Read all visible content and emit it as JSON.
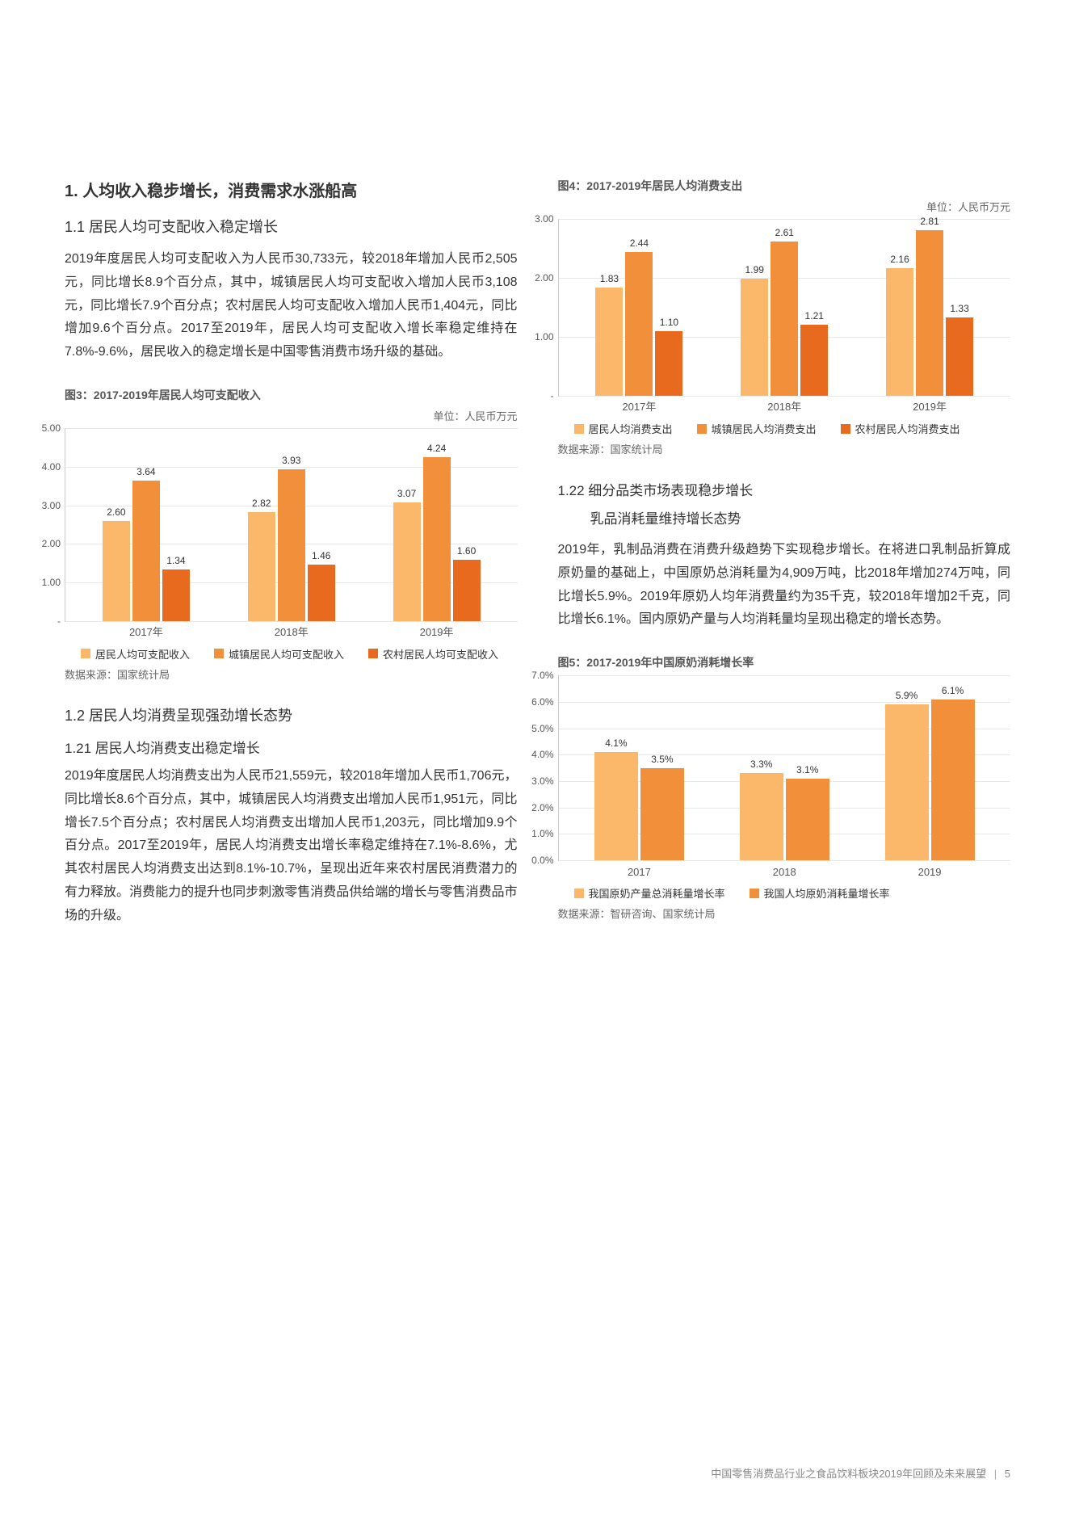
{
  "left": {
    "sec1_title": "1. 人均收入稳步增长，消费需求水涨船高",
    "sec11_title": "1.1 居民人均可支配收入稳定增长",
    "sec11_body": "2019年度居民人均可支配收入为人民币30,733元，较2018年增加人民币2,505元，同比增长8.9个百分点，其中，城镇居民人均可支配收入增加人民币3,108元，同比增长7.9个百分点；农村居民人均可支配收入增加人民币1,404元，同比增加9.6个百分点。2017至2019年，居民人均可支配收入增长率稳定维持在7.8%-9.6%，居民收入的稳定增长是中国零售消费市场升级的基础。",
    "fig3_title": "图3：2017-2019年居民人均可支配收入",
    "fig3_unit": "单位：人民币万元",
    "fig3_source": "数据来源：国家统计局",
    "sec12_title": "1.2 居民人均消费呈现强劲增长态势",
    "sec121_title": "1.21 居民人均消费支出稳定增长",
    "sec121_body": "2019年度居民人均消费支出为人民币21,559元，较2018年增加人民币1,706元，同比增长8.6个百分点，其中，城镇居民人均消费支出增加人民币1,951元，同比增长7.5个百分点；农村居民人均消费支出增加人民币1,203元，同比增加9.9个百分点。2017至2019年，居民人均消费支出增长率稳定维持在7.1%-8.6%，尤其农村居民人均消费支出达到8.1%-10.7%，呈现出近年来农村居民消费潜力的有力释放。消费能力的提升也同步刺激零售消费品供给端的增长与零售消费品市场的升级。"
  },
  "right": {
    "fig4_title": "图4：2017-2019年居民人均消费支出",
    "fig4_unit": "单位：人民币万元",
    "fig4_source": "数据来源：国家统计局",
    "sec122_title_a": "1.22 细分品类市场表现稳步增长",
    "sec122_title_b": "乳品消耗量维持增长态势",
    "sec122_body": "2019年，乳制品消费在消费升级趋势下实现稳步增长。在将进口乳制品折算成原奶量的基础上，中国原奶总消耗量为4,909万吨，比2018年增加274万吨，同比增长5.9%。2019年原奶人均年消费量约为35千克，较2018年增加2千克，同比增长6.1%。国内原奶产量与人均消耗量均呈现出稳定的增长态势。",
    "fig5_title": "图5：2017-2019年中国原奶消耗增长率",
    "fig5_source": "数据来源：智研咨询、国家统计局"
  },
  "colors": {
    "c1": "#fbb76a",
    "c2": "#f28f3b",
    "c3": "#e86a1e",
    "grid": "#e8e8e8"
  },
  "chart3": {
    "ymax": 5.0,
    "ystep": 1.0,
    "categories": [
      "2017年",
      "2018年",
      "2019年"
    ],
    "series": [
      {
        "name": "居民人均可支配收入",
        "colorKey": "c1",
        "values": [
          2.6,
          2.82,
          3.07
        ]
      },
      {
        "name": "城镇居民人均可支配收入",
        "colorKey": "c2",
        "values": [
          3.64,
          3.93,
          4.24
        ]
      },
      {
        "name": "农村居民人均可支配收入",
        "colorKey": "c3",
        "values": [
          1.34,
          1.46,
          1.6
        ]
      }
    ]
  },
  "chart4": {
    "ymax": 3.0,
    "ystep": 1.0,
    "categories": [
      "2017年",
      "2018年",
      "2019年"
    ],
    "series": [
      {
        "name": "居民人均消费支出",
        "colorKey": "c1",
        "values": [
          1.83,
          1.99,
          2.16
        ]
      },
      {
        "name": "城镇居民人均消费支出",
        "colorKey": "c2",
        "values": [
          2.44,
          2.61,
          2.81
        ]
      },
      {
        "name": "农村居民人均消费支出",
        "colorKey": "c3",
        "values": [
          1.1,
          1.21,
          1.33
        ]
      }
    ]
  },
  "chart5": {
    "ymax": 7.0,
    "ystep": 1.0,
    "ysuffix": "%",
    "categories": [
      "2017",
      "2018",
      "2019"
    ],
    "series": [
      {
        "name": "我国原奶产量总消耗量增长率",
        "colorKey": "c1",
        "values": [
          4.1,
          3.3,
          5.9
        ]
      },
      {
        "name": "我国人均原奶消耗量增长率",
        "colorKey": "c2",
        "values": [
          3.5,
          3.1,
          6.1
        ]
      }
    ]
  },
  "footer": {
    "text": "中国零售消费品行业之食品饮料板块2019年回顾及未来展望",
    "page": "5"
  }
}
